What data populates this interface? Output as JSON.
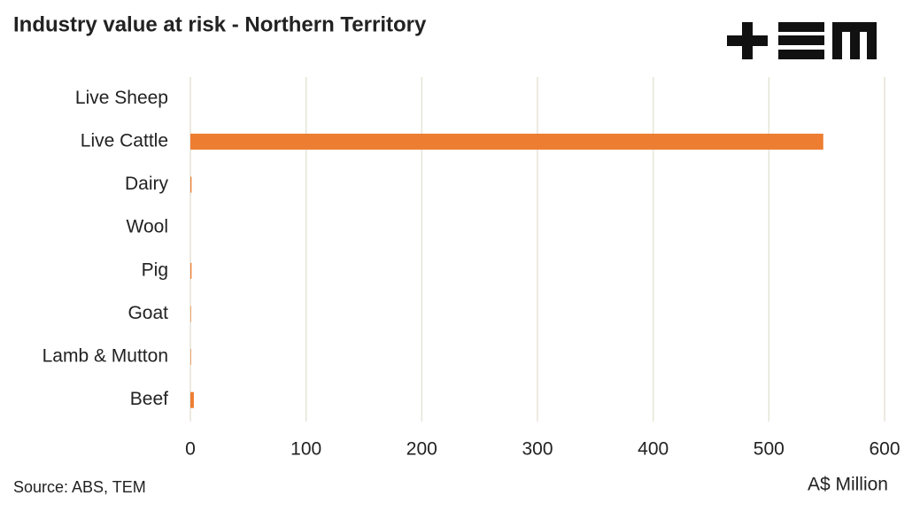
{
  "chart_data": {
    "type": "hbar",
    "title": "Industry value at risk - Northern Territory",
    "categories": [
      "Live Sheep",
      "Live Cattle",
      "Dairy",
      "Wool",
      "Pig",
      "Goat",
      "Lamb & Mutton",
      "Beef"
    ],
    "values": [
      0,
      547,
      1,
      0,
      1,
      0.5,
      0.5,
      3
    ],
    "color": "#ED7D31",
    "xlim": [
      0,
      600
    ],
    "xticks": [
      0,
      100,
      200,
      300,
      400,
      500,
      600
    ],
    "grid": true,
    "x_label": "A$ Million",
    "source": "Source: ABS, TEM"
  }
}
